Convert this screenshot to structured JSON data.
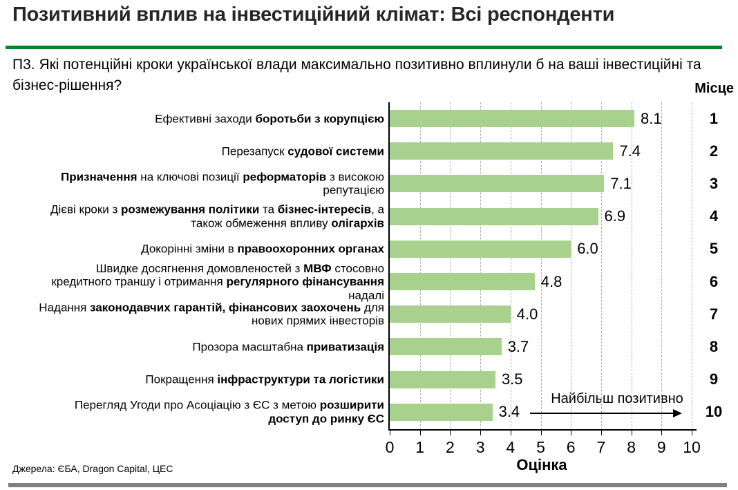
{
  "header": {
    "title": "Позитивний вплив на інвестиційний клімат: Всі респонденти"
  },
  "question": {
    "text": "П3. Які потенційні кроки української влади максимально позитивно вплинули б на ваші інвестиційні та бізнес-рішення?"
  },
  "footer": {
    "source": "Джерела: ЄБА, Dragon Capital, ЦЕС"
  },
  "colors": {
    "bar": "#A9D18E",
    "divider_green": "#00872D",
    "footer_bar": "#808080",
    "grid": "#ADADAD",
    "axis": "#000000",
    "title_text": "#262626"
  },
  "chart_data": {
    "type": "bar",
    "orientation": "horizontal",
    "xlabel": "Оцінка",
    "xlim": [
      0,
      10
    ],
    "xticks": [
      0,
      1,
      2,
      3,
      4,
      5,
      6,
      7,
      8,
      9,
      10
    ],
    "grid": "dashed-vertical",
    "rank_header": "Місце",
    "annotation": "Найбільш позитивно",
    "rows": [
      {
        "rank": "1",
        "value": 8.1,
        "value_label": "8.1",
        "label_segments": [
          {
            "t": "Ефективні заходи ",
            "b": false
          },
          {
            "t": "боротьби з корупцією",
            "b": true
          }
        ]
      },
      {
        "rank": "2",
        "value": 7.4,
        "value_label": "7.4",
        "label_segments": [
          {
            "t": "Перезапуск ",
            "b": false
          },
          {
            "t": "судової системи",
            "b": true
          }
        ]
      },
      {
        "rank": "3",
        "value": 7.1,
        "value_label": "7.1",
        "label_segments": [
          {
            "t": "Призначення",
            "b": true
          },
          {
            "t": " на ключові позиції ",
            "b": false
          },
          {
            "t": "реформаторів",
            "b": true
          },
          {
            "t": " з високою репутацією",
            "b": false
          }
        ]
      },
      {
        "rank": "4",
        "value": 6.9,
        "value_label": "6.9",
        "label_segments": [
          {
            "t": "Дієві кроки з ",
            "b": false
          },
          {
            "t": "розмежування політики",
            "b": true
          },
          {
            "t": " та ",
            "b": false
          },
          {
            "t": "бізнес-інтересів",
            "b": true
          },
          {
            "t": ", а також обмеження впливу ",
            "b": false
          },
          {
            "t": "олігархів",
            "b": true
          }
        ]
      },
      {
        "rank": "5",
        "value": 6.0,
        "value_label": "6.0",
        "label_segments": [
          {
            "t": "Докорінні зміни в ",
            "b": false
          },
          {
            "t": "правоохоронних органах",
            "b": true
          }
        ]
      },
      {
        "rank": "6",
        "value": 4.8,
        "value_label": "4.8",
        "label_segments": [
          {
            "t": "Швидке досягнення домовленостей з ",
            "b": false
          },
          {
            "t": "МВФ",
            "b": true
          },
          {
            "t": " стосовно кредитного траншу і отримання ",
            "b": false
          },
          {
            "t": "регулярного фінансування",
            "b": true
          },
          {
            "t": " надалі",
            "b": false
          }
        ]
      },
      {
        "rank": "7",
        "value": 4.0,
        "value_label": "4.0",
        "label_segments": [
          {
            "t": "Надання ",
            "b": false
          },
          {
            "t": "законодавчих гарантій, фінансових заохочень",
            "b": true
          },
          {
            "t": " для нових прямих інвесторів",
            "b": false
          }
        ]
      },
      {
        "rank": "8",
        "value": 3.7,
        "value_label": "3.7",
        "label_segments": [
          {
            "t": "Прозора масштабна ",
            "b": false
          },
          {
            "t": "приватизація",
            "b": true
          }
        ]
      },
      {
        "rank": "9",
        "value": 3.5,
        "value_label": "3.5",
        "label_segments": [
          {
            "t": "Покращення ",
            "b": false
          },
          {
            "t": "інфраструктури та логістики",
            "b": true
          }
        ]
      },
      {
        "rank": "10",
        "value": 3.4,
        "value_label": "3.4",
        "label_segments": [
          {
            "t": "Перегляд Угоди про Асоціацію з ЄС з метою ",
            "b": false
          },
          {
            "t": "розширити доступ до ринку ЄС",
            "b": true
          }
        ]
      }
    ]
  }
}
